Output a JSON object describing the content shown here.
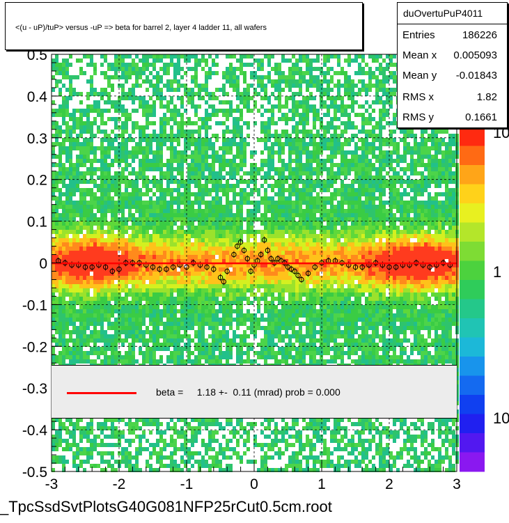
{
  "title": "<(u - uP)/tuP> versus  -uP => beta for barrel 2, layer 4 ladder 11, all wafers",
  "stats": {
    "name": "duOvertuPuP4011",
    "rows": [
      {
        "label": "Entries",
        "value": "186226"
      },
      {
        "label": "Mean x",
        "value": "0.005093"
      },
      {
        "label": "Mean y",
        "value": "-0.01843"
      },
      {
        "label": "RMS x",
        "value": "1.82"
      },
      {
        "label": "RMS y",
        "value": "0.1661"
      }
    ]
  },
  "fit": {
    "text": "beta =     1.18 +-  0.11 (mrad) prob = 0.000",
    "line_color": "#ff0000"
  },
  "file_label": "_TpcSsdSvtPlotsG40G081NFP25rCut0.5cm.root",
  "chart_data": {
    "type": "heatmap",
    "title": "<(u - uP)/tuP> versus  -uP => beta for barrel 2, layer 4 ladder 11, all wafers",
    "xlim": [
      -3,
      3
    ],
    "ylim": [
      -0.5,
      0.5
    ],
    "x_ticks": [
      "-3",
      "-2",
      "-1",
      "0",
      "1",
      "2",
      "3"
    ],
    "y_ticks": [
      "-0.5",
      "-0.4",
      "-0.3",
      "-0.2",
      "-0.1",
      "0",
      "0.1",
      "0.2",
      "0.3",
      "0.4",
      "0.5"
    ],
    "grid": true,
    "colorbar": {
      "scale": "log",
      "tick_labels": [
        "10",
        "1",
        "10"
      ]
    },
    "fit_line": {
      "x": [
        -3,
        3
      ],
      "y": [
        -0.0011,
        -0.0011
      ],
      "color": "#ff0000"
    },
    "profile_points": {
      "x": [
        -2.9,
        -2.8,
        -2.7,
        -2.6,
        -2.5,
        -2.4,
        -2.3,
        -2.2,
        -2.1,
        -2.0,
        -1.9,
        -1.8,
        -1.7,
        -1.6,
        -1.5,
        -1.4,
        -1.3,
        -1.2,
        -1.1,
        -1.0,
        -0.9,
        -0.8,
        -0.7,
        -0.6,
        -0.5,
        -0.45,
        -0.4,
        -0.3,
        -0.25,
        -0.2,
        -0.15,
        -0.1,
        -0.05,
        0.0,
        0.05,
        0.1,
        0.15,
        0.2,
        0.25,
        0.3,
        0.35,
        0.4,
        0.45,
        0.5,
        0.55,
        0.6,
        0.65,
        0.7,
        0.8,
        0.9,
        1.0,
        1.1,
        1.2,
        1.3,
        1.4,
        1.5,
        1.6,
        1.7,
        1.8,
        1.9,
        2.0,
        2.1,
        2.2,
        2.3,
        2.4,
        2.5,
        2.6,
        2.7,
        2.8,
        2.9
      ],
      "y": [
        0.005,
        0.0,
        -0.005,
        -0.005,
        -0.01,
        -0.01,
        -0.005,
        -0.01,
        -0.02,
        -0.015,
        0.0,
        0.0,
        0.0,
        -0.005,
        -0.01,
        -0.015,
        -0.015,
        -0.01,
        -0.005,
        -0.01,
        0.0,
        -0.005,
        -0.01,
        -0.015,
        -0.035,
        -0.045,
        -0.02,
        0.02,
        0.04,
        0.05,
        0.03,
        0.01,
        -0.02,
        -0.005,
        0.005,
        0.02,
        0.055,
        0.03,
        0.01,
        0.0,
        0.01,
        0.005,
        0.0,
        -0.01,
        -0.015,
        -0.02,
        -0.03,
        -0.04,
        -0.025,
        -0.01,
        0.0,
        0.005,
        0.005,
        0.0,
        -0.005,
        -0.01,
        -0.01,
        -0.005,
        0.0,
        -0.005,
        -0.01,
        -0.01,
        -0.005,
        -0.005,
        0.0,
        -0.005,
        -0.01,
        -0.005,
        0.0,
        -0.005
      ]
    }
  }
}
